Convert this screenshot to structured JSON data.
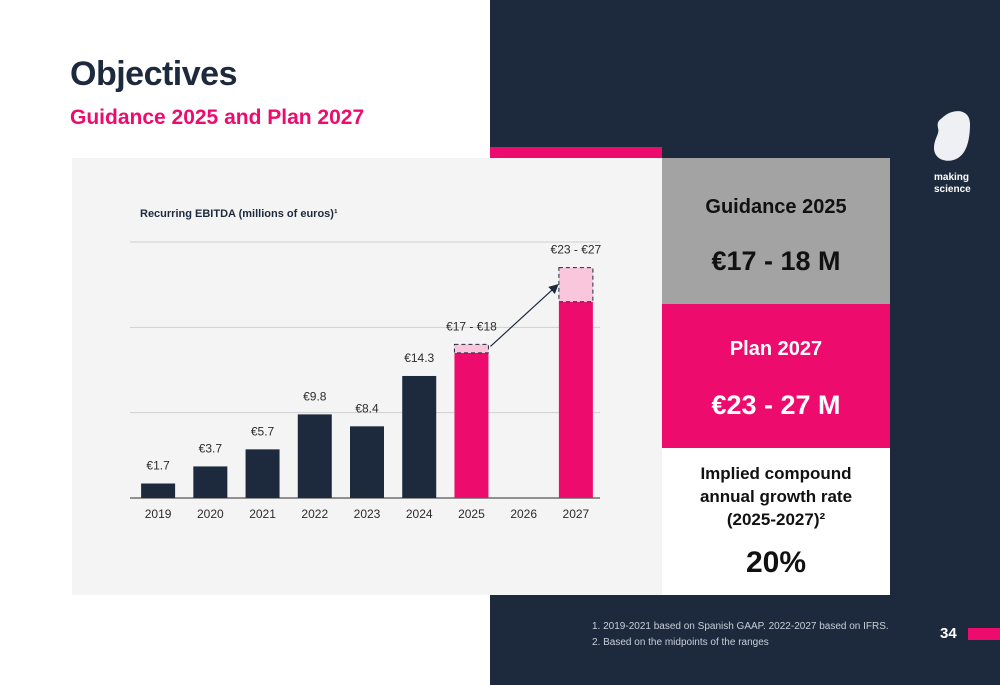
{
  "slide": {
    "title": "Objectives",
    "subtitle": "Guidance 2025 and Plan 2027",
    "page_number": "34"
  },
  "brand": {
    "logo_line1": "making",
    "logo_line2": "science",
    "colors": {
      "navy": "#1d2a3d",
      "pink": "#ed0c6e",
      "light_pink": "#f9c6dc",
      "gray": "#a3a3a3"
    }
  },
  "boxes": {
    "guidance": {
      "label": "Guidance 2025",
      "value": "€17 - 18 M"
    },
    "plan": {
      "label": "Plan 2027",
      "value": "€23 - 27 M"
    },
    "growth": {
      "label_line1": "Implied compound",
      "label_line2": "annual growth rate",
      "label_line3": "(2025-2027)²",
      "value": "20%"
    }
  },
  "footnotes": {
    "note1": "1. 2019-2021 based on Spanish GAAP. 2022-2027 based on IFRS.",
    "note2": "2. Based on the midpoints of the ranges"
  },
  "chart_data": {
    "type": "bar",
    "title": "Recurring EBITDA (millions of euros)¹",
    "xlabel": "",
    "ylabel": "",
    "ylim": [
      0,
      30
    ],
    "grid": true,
    "categories": [
      "2019",
      "2020",
      "2021",
      "2022",
      "2023",
      "2024",
      "2025",
      "2026",
      "2027"
    ],
    "values": [
      1.7,
      3.7,
      5.7,
      9.8,
      8.4,
      14.3,
      17,
      null,
      23
    ],
    "range_max": [
      null,
      null,
      null,
      null,
      null,
      null,
      18,
      null,
      27
    ],
    "labels": [
      "€1.7",
      "€3.7",
      "€5.7",
      "€9.8",
      "€8.4",
      "€14.3",
      "€17 - €18",
      "",
      "€23 - €27"
    ],
    "bar_colors": [
      "#1d2a3d",
      "#1d2a3d",
      "#1d2a3d",
      "#1d2a3d",
      "#1d2a3d",
      "#1d2a3d",
      "#ed0c6e",
      "#ed0c6e",
      "#ed0c6e"
    ]
  }
}
